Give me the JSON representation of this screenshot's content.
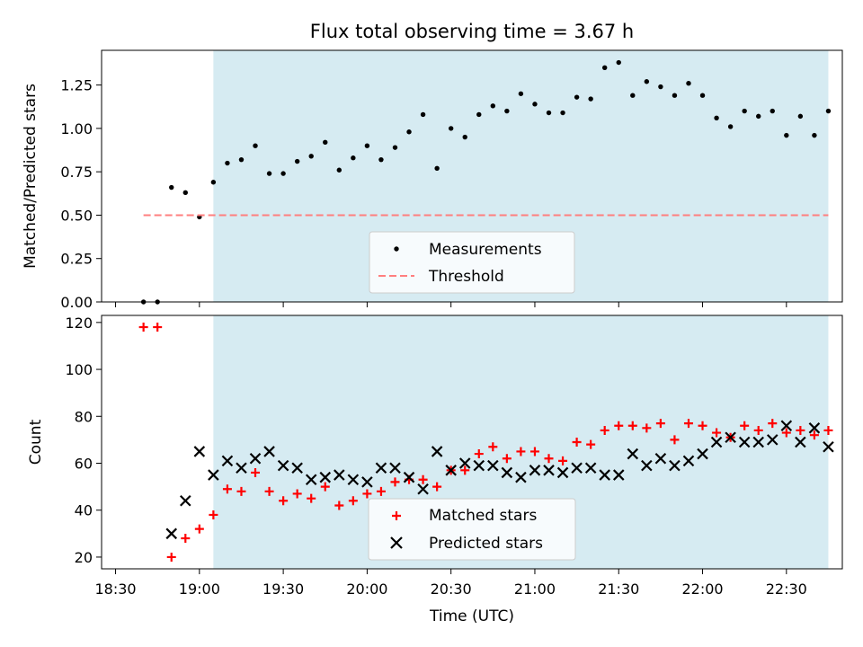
{
  "chart_data": [
    {
      "type": "scatter",
      "title": "Flux total observing time = 3.67 h",
      "ylabel": "Matched/Predicted stars",
      "xlabel": "",
      "xlim": [
        "18:25",
        "22:50"
      ],
      "ylim": [
        0,
        1.45
      ],
      "yticks": [
        "0.00",
        "0.25",
        "0.50",
        "0.75",
        "1.00",
        "1.25"
      ],
      "grid": false,
      "shaded_region": {
        "x_start": "19:05",
        "x_end": "22:45",
        "color": "#add8e6"
      },
      "legend": {
        "placement": "lower center",
        "entries": [
          "Measurements",
          "Threshold"
        ]
      },
      "series": [
        {
          "name": "Measurements",
          "marker": "dot",
          "color": "#000000",
          "x": [
            "18:40",
            "18:45",
            "18:50",
            "18:55",
            "19:00",
            "19:05",
            "19:10",
            "19:15",
            "19:20",
            "19:25",
            "19:30",
            "19:35",
            "19:40",
            "19:45",
            "19:50",
            "19:55",
            "20:00",
            "20:05",
            "20:10",
            "20:15",
            "20:20",
            "20:25",
            "20:30",
            "20:35",
            "20:40",
            "20:45",
            "20:50",
            "20:55",
            "21:00",
            "21:05",
            "21:10",
            "21:15",
            "21:20",
            "21:25",
            "21:30",
            "21:35",
            "21:40",
            "21:45",
            "21:50",
            "21:55",
            "22:00",
            "22:05",
            "22:10",
            "22:15",
            "22:20",
            "22:25",
            "22:30",
            "22:35",
            "22:40",
            "22:45"
          ],
          "y": [
            0.0,
            0.0,
            0.66,
            0.63,
            0.49,
            0.69,
            0.8,
            0.82,
            0.9,
            0.74,
            0.74,
            0.81,
            0.84,
            0.92,
            0.76,
            0.83,
            0.9,
            0.82,
            0.89,
            0.98,
            1.08,
            0.77,
            1.0,
            0.95,
            1.08,
            1.13,
            1.1,
            1.2,
            1.14,
            1.09,
            1.09,
            1.18,
            1.17,
            1.35,
            1.38,
            1.19,
            1.27,
            1.24,
            1.19,
            1.26,
            1.19,
            1.06,
            1.01,
            1.1,
            1.07,
            1.1,
            0.96,
            1.07,
            0.96,
            1.1
          ]
        },
        {
          "name": "Threshold",
          "line": "dashed",
          "color": "#ff7f7f",
          "x": [
            "18:40",
            "22:45"
          ],
          "y": [
            0.5,
            0.5
          ]
        }
      ]
    },
    {
      "type": "scatter",
      "title": "",
      "ylabel": "Count",
      "xlabel": "Time (UTC)",
      "xlim": [
        "18:25",
        "22:50"
      ],
      "xticks": [
        "18:30",
        "19:00",
        "19:30",
        "20:00",
        "20:30",
        "21:00",
        "21:30",
        "22:00",
        "22:30"
      ],
      "ylim": [
        15,
        123
      ],
      "yticks": [
        "20",
        "40",
        "60",
        "80",
        "100",
        "120"
      ],
      "grid": false,
      "shaded_region": {
        "x_start": "19:05",
        "x_end": "22:45",
        "color": "#add8e6"
      },
      "legend": {
        "placement": "lower center",
        "entries": [
          "Matched stars",
          "Predicted stars"
        ]
      },
      "series": [
        {
          "name": "Matched stars",
          "marker": "+",
          "color": "#ff0000",
          "x": [
            "18:40",
            "18:45",
            "18:50",
            "18:55",
            "19:00",
            "19:05",
            "19:10",
            "19:15",
            "19:20",
            "19:25",
            "19:30",
            "19:35",
            "19:40",
            "19:45",
            "19:50",
            "19:55",
            "20:00",
            "20:05",
            "20:10",
            "20:15",
            "20:20",
            "20:25",
            "20:30",
            "20:35",
            "20:40",
            "20:45",
            "20:50",
            "20:55",
            "21:00",
            "21:05",
            "21:10",
            "21:15",
            "21:20",
            "21:25",
            "21:30",
            "21:35",
            "21:40",
            "21:45",
            "21:50",
            "21:55",
            "22:00",
            "22:05",
            "22:10",
            "22:15",
            "22:20",
            "22:25",
            "22:30",
            "22:35",
            "22:40",
            "22:45"
          ],
          "y": [
            118,
            118,
            20,
            28,
            32,
            38,
            49,
            48,
            56,
            48,
            44,
            47,
            45,
            50,
            42,
            44,
            47,
            48,
            52,
            53,
            53,
            50,
            57,
            57,
            64,
            67,
            62,
            65,
            65,
            62,
            61,
            69,
            68,
            74,
            76,
            76,
            75,
            77,
            70,
            77,
            76,
            73,
            71,
            76,
            74,
            77,
            73,
            74,
            72,
            74
          ]
        },
        {
          "name": "Predicted stars",
          "marker": "x",
          "color": "#000000",
          "x": [
            "18:50",
            "18:55",
            "19:00",
            "19:05",
            "19:10",
            "19:15",
            "19:20",
            "19:25",
            "19:30",
            "19:35",
            "19:40",
            "19:45",
            "19:50",
            "19:55",
            "20:00",
            "20:05",
            "20:10",
            "20:15",
            "20:20",
            "20:25",
            "20:30",
            "20:35",
            "20:40",
            "20:45",
            "20:50",
            "20:55",
            "21:00",
            "21:05",
            "21:10",
            "21:15",
            "21:20",
            "21:25",
            "21:30",
            "21:35",
            "21:40",
            "21:45",
            "21:50",
            "21:55",
            "22:00",
            "22:05",
            "22:10",
            "22:15",
            "22:20",
            "22:25",
            "22:30",
            "22:35",
            "22:40",
            "22:45"
          ],
          "y": [
            30,
            44,
            65,
            55,
            61,
            58,
            62,
            65,
            59,
            58,
            53,
            54,
            55,
            53,
            52,
            58,
            58,
            54,
            49,
            65,
            57,
            60,
            59,
            59,
            56,
            54,
            57,
            57,
            56,
            58,
            58,
            55,
            55,
            64,
            59,
            62,
            59,
            61,
            64,
            69,
            71,
            69,
            69,
            70,
            76,
            69,
            75,
            67
          ]
        }
      ]
    }
  ]
}
